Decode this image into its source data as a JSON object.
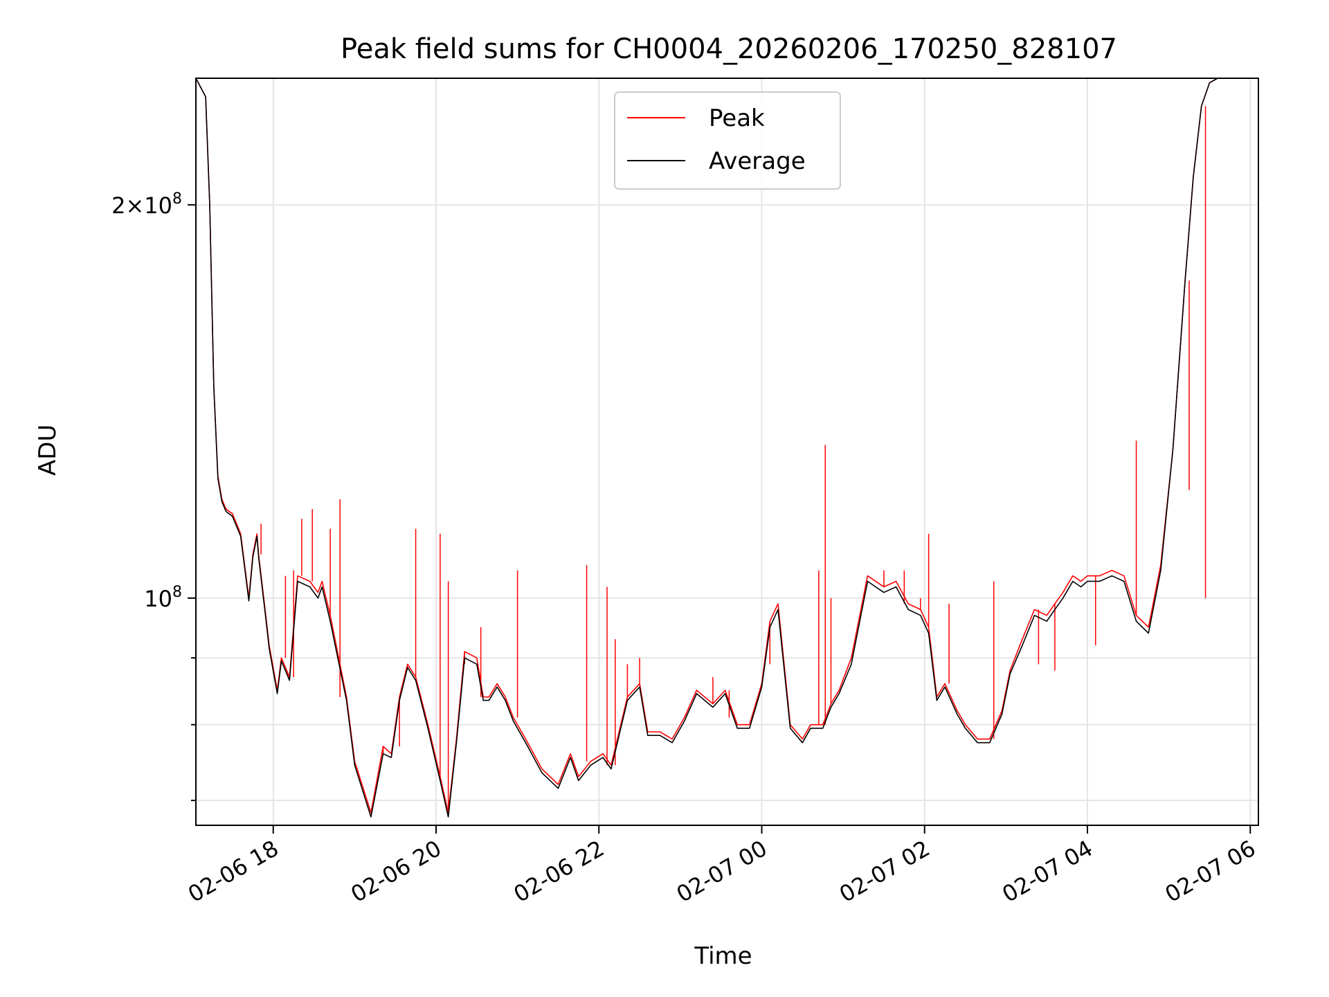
{
  "chart_data": {
    "type": "line",
    "title": "Peak field sums for CH0004_20260206_170250_828107",
    "xlabel": "Time",
    "ylabel": "ADU",
    "y_scale": "log",
    "ylim": [
      67000000,
      250000000
    ],
    "xlim_hours": [
      17.05,
      30.1
    ],
    "grid": true,
    "legend_position": "upper center",
    "x_ticks": [
      {
        "hour": 18,
        "label": "02-06 18"
      },
      {
        "hour": 20,
        "label": "02-06 20"
      },
      {
        "hour": 22,
        "label": "02-06 22"
      },
      {
        "hour": 24,
        "label": "02-07 00"
      },
      {
        "hour": 26,
        "label": "02-07 02"
      },
      {
        "hour": 28,
        "label": "02-07 04"
      },
      {
        "hour": 30,
        "label": "02-07 06"
      }
    ],
    "y_major_ticks": [
      {
        "value": 100000000,
        "base": "10",
        "exp": "8",
        "mantissa": ""
      },
      {
        "value": 200000000,
        "base": "10",
        "exp": "8",
        "mantissa": "2×"
      }
    ],
    "y_minor_ticks": [
      70000000,
      80000000,
      90000000
    ],
    "series": [
      {
        "name": "Peak",
        "color": "#ff0000",
        "x_hours": [
          17.05,
          17.17,
          17.22,
          17.27,
          17.32,
          17.37,
          17.42,
          17.5,
          17.6,
          17.7,
          17.75,
          17.8,
          17.82,
          17.9,
          17.95,
          18.05,
          18.1,
          18.2,
          18.3,
          18.45,
          18.55,
          18.6,
          18.7,
          18.9,
          19.0,
          19.2,
          19.35,
          19.45,
          19.55,
          19.65,
          19.75,
          19.9,
          20.05,
          20.15,
          20.25,
          20.35,
          20.5,
          20.58,
          20.65,
          20.75,
          20.85,
          20.95,
          21.1,
          21.3,
          21.5,
          21.65,
          21.75,
          21.9,
          22.05,
          22.15,
          22.35,
          22.5,
          22.6,
          22.75,
          22.9,
          23.05,
          23.2,
          23.4,
          23.55,
          23.7,
          23.85,
          24.0,
          24.1,
          24.2,
          24.35,
          24.5,
          24.6,
          24.7,
          24.75,
          24.85,
          24.95,
          25.1,
          25.3,
          25.5,
          25.65,
          25.8,
          25.95,
          26.05,
          26.15,
          26.25,
          26.4,
          26.5,
          26.65,
          26.8,
          26.95,
          27.05,
          27.2,
          27.35,
          27.5,
          27.6,
          27.7,
          27.82,
          27.92,
          28.0,
          28.05,
          28.15,
          28.3,
          28.45,
          28.6,
          28.75,
          28.9,
          29.05,
          29.2,
          29.3,
          29.4,
          29.5,
          29.6,
          29.8,
          29.95,
          30.05,
          30.1
        ],
        "values": [
          250000000,
          242000000,
          200000000,
          145000000,
          124000000,
          119000000,
          117000000,
          116000000,
          112000000,
          100000000,
          108000000,
          112000000,
          108000000,
          98000000,
          92000000,
          85000000,
          90000000,
          87000000,
          104000000,
          103000000,
          101000000,
          103000000,
          97000000,
          84000000,
          75000000,
          68500000,
          77000000,
          76000000,
          84000000,
          89000000,
          87000000,
          80000000,
          73000000,
          68500000,
          78000000,
          91000000,
          90000000,
          84000000,
          84000000,
          86000000,
          84000000,
          81000000,
          78000000,
          74000000,
          72000000,
          76000000,
          73000000,
          75000000,
          76000000,
          74500000,
          84000000,
          86000000,
          79000000,
          79000000,
          78000000,
          81000000,
          85000000,
          83000000,
          85000000,
          80000000,
          80000000,
          86000000,
          96000000,
          99000000,
          80000000,
          78000000,
          80000000,
          80000000,
          80000000,
          83000000,
          85000000,
          90000000,
          104000000,
          102000000,
          103000000,
          99000000,
          98000000,
          95000000,
          84000000,
          86000000,
          82000000,
          80000000,
          78000000,
          78000000,
          82000000,
          88000000,
          93000000,
          98000000,
          97000000,
          99000000,
          101000000,
          104000000,
          103000000,
          104000000,
          104000000,
          104000000,
          105000000,
          104000000,
          97000000,
          95000000,
          106000000,
          130000000,
          175000000,
          210000000,
          238000000,
          248000000,
          250000000,
          250000000,
          250000000,
          250000000,
          250000000
        ],
        "spikes": [
          [
            17.85,
            114000000
          ],
          [
            18.15,
            104000000
          ],
          [
            18.25,
            105000000
          ],
          [
            18.35,
            115000000
          ],
          [
            18.48,
            117000000
          ],
          [
            18.7,
            113000000
          ],
          [
            18.82,
            119000000
          ],
          [
            19.35,
            76000000
          ],
          [
            19.55,
            77000000
          ],
          [
            19.75,
            113000000
          ],
          [
            20.05,
            112000000
          ],
          [
            20.15,
            103000000
          ],
          [
            20.35,
            89000000
          ],
          [
            20.55,
            95000000
          ],
          [
            21.0,
            105000000
          ],
          [
            21.85,
            106000000
          ],
          [
            22.1,
            102000000
          ],
          [
            22.2,
            93000000
          ],
          [
            22.35,
            89000000
          ],
          [
            22.5,
            90000000
          ],
          [
            23.4,
            87000000
          ],
          [
            23.6,
            81000000
          ],
          [
            24.05,
            86000000
          ],
          [
            24.1,
            89000000
          ],
          [
            24.7,
            105000000
          ],
          [
            24.78,
            131000000
          ],
          [
            24.85,
            100000000
          ],
          [
            25.5,
            105000000
          ],
          [
            25.75,
            105000000
          ],
          [
            25.95,
            100000000
          ],
          [
            26.05,
            112000000
          ],
          [
            26.3,
            99000000
          ],
          [
            26.85,
            103000000
          ],
          [
            27.4,
            89000000
          ],
          [
            27.6,
            88000000
          ],
          [
            28.1,
            92000000
          ],
          [
            28.6,
            132000000
          ],
          [
            29.25,
            121000000
          ],
          [
            29.45,
            100000000
          ]
        ]
      },
      {
        "name": "Average",
        "color": "#000000",
        "x_hours": [
          17.05,
          17.17,
          17.22,
          17.27,
          17.32,
          17.37,
          17.42,
          17.5,
          17.6,
          17.7,
          17.75,
          17.8,
          17.82,
          17.9,
          17.95,
          18.05,
          18.1,
          18.2,
          18.3,
          18.45,
          18.55,
          18.6,
          18.7,
          18.9,
          19.0,
          19.2,
          19.35,
          19.45,
          19.55,
          19.65,
          19.75,
          19.9,
          20.05,
          20.15,
          20.25,
          20.35,
          20.5,
          20.58,
          20.65,
          20.75,
          20.85,
          20.95,
          21.1,
          21.3,
          21.5,
          21.65,
          21.75,
          21.9,
          22.05,
          22.15,
          22.35,
          22.5,
          22.6,
          22.75,
          22.9,
          23.05,
          23.2,
          23.4,
          23.55,
          23.7,
          23.85,
          24.0,
          24.1,
          24.2,
          24.35,
          24.5,
          24.6,
          24.7,
          24.75,
          24.85,
          24.95,
          25.1,
          25.3,
          25.5,
          25.65,
          25.8,
          25.95,
          26.05,
          26.15,
          26.25,
          26.4,
          26.5,
          26.65,
          26.8,
          26.95,
          27.05,
          27.2,
          27.35,
          27.5,
          27.6,
          27.7,
          27.82,
          27.92,
          28.0,
          28.05,
          28.15,
          28.3,
          28.45,
          28.6,
          28.75,
          28.9,
          29.05,
          29.2,
          29.3,
          29.4,
          29.5,
          29.6,
          29.8,
          29.95,
          30.05,
          30.1
        ],
        "values": [
          250000000,
          242000000,
          200000000,
          145000000,
          123500000,
          118500000,
          116500000,
          115500000,
          111500000,
          99500000,
          107500000,
          111500000,
          107500000,
          97500000,
          91500000,
          84500000,
          89500000,
          86500000,
          103000000,
          102000000,
          100000000,
          102000000,
          96000000,
          83500000,
          74500000,
          68000000,
          76000000,
          75500000,
          83500000,
          88500000,
          86500000,
          79500000,
          72500000,
          68000000,
          77500000,
          90000000,
          89000000,
          83500000,
          83500000,
          85500000,
          83500000,
          80500000,
          77500000,
          73500000,
          71500000,
          75500000,
          72500000,
          74500000,
          75500000,
          74000000,
          83500000,
          85500000,
          78500000,
          78500000,
          77500000,
          80500000,
          84500000,
          82500000,
          84500000,
          79500000,
          79500000,
          85500000,
          95000000,
          98000000,
          79500000,
          77500000,
          79500000,
          79500000,
          79500000,
          82500000,
          84500000,
          89000000,
          103000000,
          101000000,
          102000000,
          98000000,
          97000000,
          94000000,
          83500000,
          85500000,
          81500000,
          79500000,
          77500000,
          77500000,
          81500000,
          87500000,
          92000000,
          97000000,
          96000000,
          98000000,
          100000000,
          103000000,
          102000000,
          103000000,
          103000000,
          103000000,
          104000000,
          103000000,
          96000000,
          94000000,
          105000000,
          130000000,
          175000000,
          210000000,
          238000000,
          248000000,
          250000000,
          250000000,
          250000000,
          250000000,
          250000000
        ]
      }
    ]
  }
}
